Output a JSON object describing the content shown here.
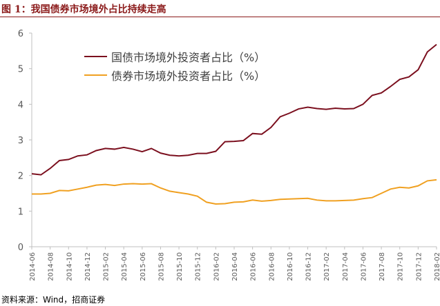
{
  "header": {
    "title": "图 1：我国债券市场境外占比持续走高"
  },
  "footer": {
    "source": "资料来源：Wind，招商证券"
  },
  "chart_data": {
    "type": "line",
    "title": "",
    "xlabel": "",
    "ylabel": "",
    "ylim": [
      0,
      6
    ],
    "yticks": [
      "0",
      "1",
      "2",
      "3",
      "4",
      "5",
      "6"
    ],
    "grid": false,
    "legend": "top-center",
    "x": [
      "2014-06",
      "2014-07",
      "2014-08",
      "2014-09",
      "2014-10",
      "2014-11",
      "2014-12",
      "2015-01",
      "2015-02",
      "2015-03",
      "2015-04",
      "2015-05",
      "2015-06",
      "2015-07",
      "2015-08",
      "2015-09",
      "2015-10",
      "2015-11",
      "2015-12",
      "2016-01",
      "2016-02",
      "2016-03",
      "2016-04",
      "2016-05",
      "2016-06",
      "2016-07",
      "2016-08",
      "2016-09",
      "2016-10",
      "2016-11",
      "2016-12",
      "2017-01",
      "2017-02",
      "2017-03",
      "2017-04",
      "2017-05",
      "2017-06",
      "2017-07",
      "2017-08",
      "2017-09",
      "2017-10",
      "2017-11",
      "2017-12",
      "2018-01",
      "2018-02"
    ],
    "xticks": [
      "2014-06",
      "2014-08",
      "2014-10",
      "2014-12",
      "2015-02",
      "2015-04",
      "2015-06",
      "2015-08",
      "2015-10",
      "2015-12",
      "2016-02",
      "2016-04",
      "2016-06",
      "2016-08",
      "2016-10",
      "2016-12",
      "2017-02",
      "2017-04",
      "2017-06",
      "2017-08",
      "2017-10",
      "2017-12",
      "2018-02"
    ],
    "series": [
      {
        "name": "国债市场境外投资者占比（%）",
        "color": "#7b0f1e",
        "values": [
          2.05,
          2.02,
          2.2,
          2.42,
          2.45,
          2.55,
          2.58,
          2.7,
          2.76,
          2.74,
          2.79,
          2.74,
          2.67,
          2.76,
          2.63,
          2.57,
          2.55,
          2.57,
          2.62,
          2.62,
          2.68,
          2.95,
          2.96,
          2.98,
          3.18,
          3.16,
          3.35,
          3.65,
          3.75,
          3.87,
          3.92,
          3.88,
          3.86,
          3.89,
          3.87,
          3.88,
          4.0,
          4.25,
          4.32,
          4.5,
          4.7,
          4.77,
          4.97,
          5.47,
          5.68
        ]
      },
      {
        "name": "债券市场境外投资者占比（%）",
        "color": "#f0a020",
        "values": [
          1.48,
          1.48,
          1.5,
          1.58,
          1.57,
          1.62,
          1.67,
          1.73,
          1.75,
          1.72,
          1.76,
          1.77,
          1.76,
          1.77,
          1.65,
          1.56,
          1.52,
          1.48,
          1.42,
          1.25,
          1.2,
          1.21,
          1.25,
          1.26,
          1.31,
          1.28,
          1.3,
          1.33,
          1.34,
          1.35,
          1.36,
          1.31,
          1.29,
          1.29,
          1.3,
          1.31,
          1.35,
          1.38,
          1.5,
          1.62,
          1.67,
          1.65,
          1.71,
          1.85,
          1.88
        ]
      }
    ]
  }
}
